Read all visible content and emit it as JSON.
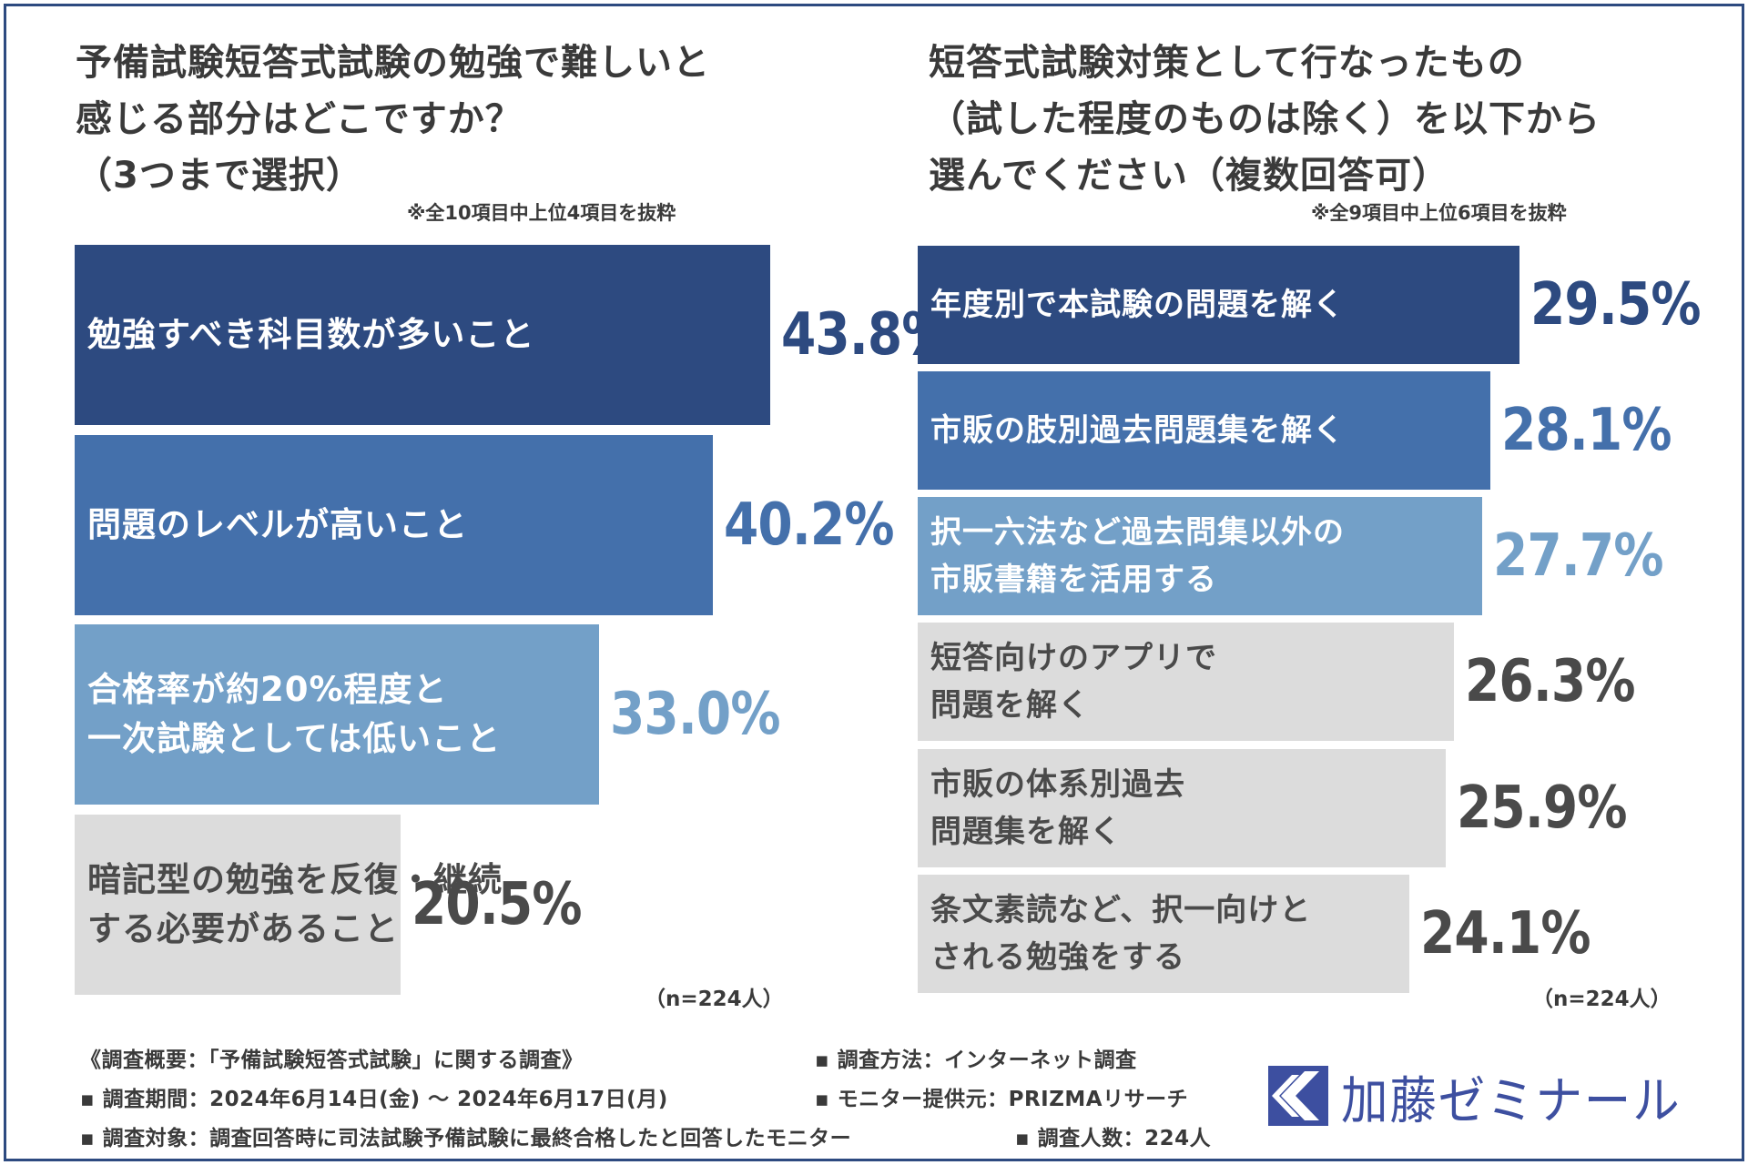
{
  "colors": {
    "frame": "#2d4a80",
    "dark_blue": "#2d4a80",
    "mid_blue": "#4470ab",
    "light_blue": "#73a0c8",
    "gray_bar": "#dcdcdc",
    "gray_text": "#4a4a4a",
    "logo_blue": "#3d4fa0"
  },
  "left": {
    "title_lines": [
      "予備試験短答式試験の勉強で難しいと",
      "感じる部分はどこですか？",
      "（3つまで選択）"
    ],
    "note": "※全10項目中上位4項目を抜粋",
    "n_label": "（n=224人）"
  },
  "right": {
    "title_lines": [
      "短答式試験対策として行なったもの",
      "（試した程度のものは除く）を以下から",
      "選んでください（複数回答可）"
    ],
    "note": "※全9項目中上位6項目を抜粋",
    "n_label": "（n=224人）"
  },
  "chart_data": [
    {
      "type": "bar",
      "orientation": "horizontal",
      "title": "予備試験短答式試験の勉強で難しいと感じる部分はどこですか？（3つまで選択）",
      "categories": [
        "勉強すべき科目数が多いこと",
        "問題のレベルが高いこと",
        "合格率が約20%程度と一次試験としては低いこと",
        "暗記型の勉強を反復・継続する必要があること"
      ],
      "category_lines": [
        [
          "勉強すべき科目数が多いこと"
        ],
        [
          "問題のレベルが高いこと"
        ],
        [
          "合格率が約20%程度と",
          "一次試験としては低いこと"
        ],
        [
          "暗記型の勉強を反復・継続",
          "する必要があること"
        ]
      ],
      "values": [
        43.8,
        40.2,
        33.0,
        20.5
      ],
      "value_labels": [
        "43.8%",
        "40.2%",
        "33.0%",
        "20.5%"
      ],
      "unit": "%",
      "n": "n=224人"
    },
    {
      "type": "bar",
      "orientation": "horizontal",
      "title": "短答式試験対策として行なったもの（試した程度のものは除く）を以下から選んでください（複数回答可）",
      "categories": [
        "年度別で本試験の問題を解く",
        "市販の肢別過去問題集を解く",
        "択一六法など過去問集以外の市販書籍を活用する",
        "短答向けのアプリで問題を解く",
        "市販の体系別過去問題集を解く",
        "条文素読など、択一向けとされる勉強をする"
      ],
      "category_lines": [
        [
          "年度別で本試験の問題を解く"
        ],
        [
          "市販の肢別過去問題集を解く"
        ],
        [
          "択一六法など過去問集以外の",
          "市販書籍を活用する"
        ],
        [
          "短答向けのアプリで",
          "問題を解く"
        ],
        [
          "市販の体系別過去",
          "問題集を解く"
        ],
        [
          "条文素読など、択一向けと",
          "される勉強をする"
        ]
      ],
      "values": [
        29.5,
        28.1,
        27.7,
        26.3,
        25.9,
        24.1
      ],
      "value_labels": [
        "29.5%",
        "28.1%",
        "27.7%",
        "26.3%",
        "25.9%",
        "24.1%"
      ],
      "unit": "%",
      "n": "n=224人"
    }
  ],
  "footer": {
    "overview": "《調査概要：「予備試験短答式試験」に関する調査》",
    "method": "▪ 調査方法：インターネット調査",
    "period": "▪ 調査期間：2024年6月14日(金) 〜 2024年6月17日(月)",
    "provider": "▪ モニター提供元：PRIZMAリサーチ",
    "target": "▪ 調査対象：調査回答時に司法試験予備試験に最終合格したと回答したモニター",
    "count": "▪ 調査人数：224人"
  },
  "logo": {
    "text": "加藤ゼミナール",
    "icon": "kato-seminar-logo-icon"
  }
}
